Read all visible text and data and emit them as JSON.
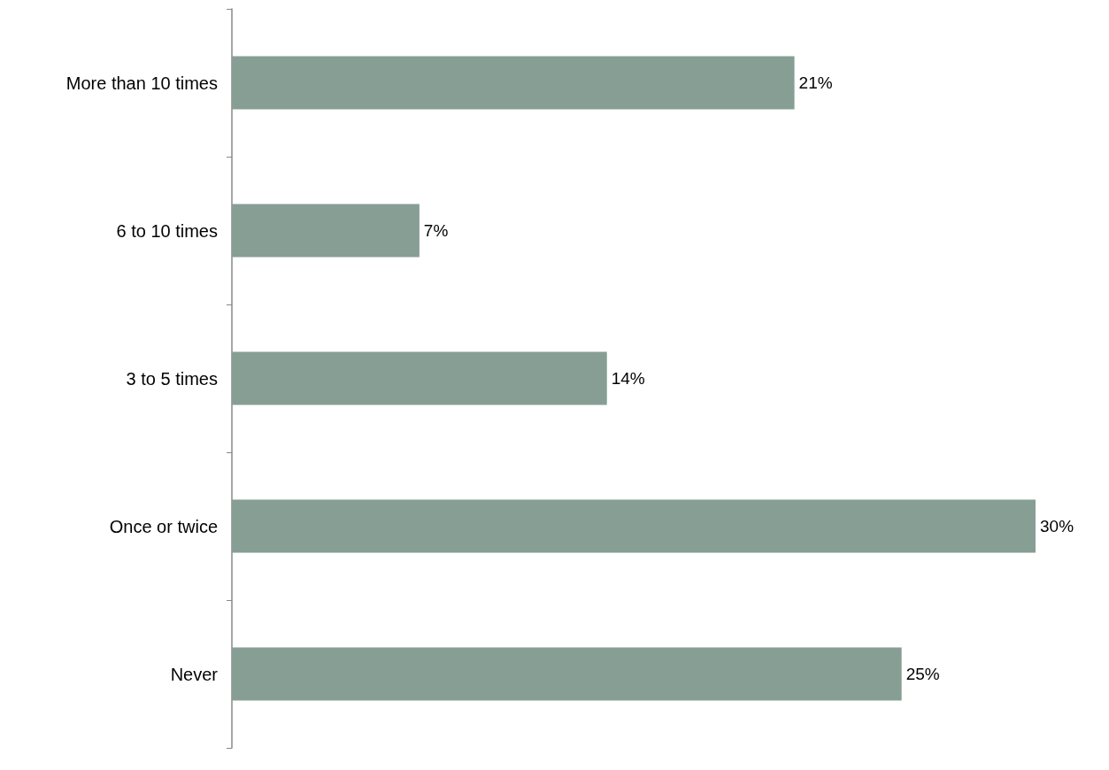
{
  "chart_data": {
    "type": "bar",
    "orientation": "horizontal",
    "categories": [
      "More than 10 times",
      "6 to 10 times",
      "3 to 5 times",
      "Once or twice",
      "Never"
    ],
    "values": [
      21,
      7,
      14,
      30,
      25
    ],
    "value_labels": [
      "21%",
      "7%",
      "14%",
      "30%",
      "25%"
    ],
    "color": "#879e94"
  }
}
